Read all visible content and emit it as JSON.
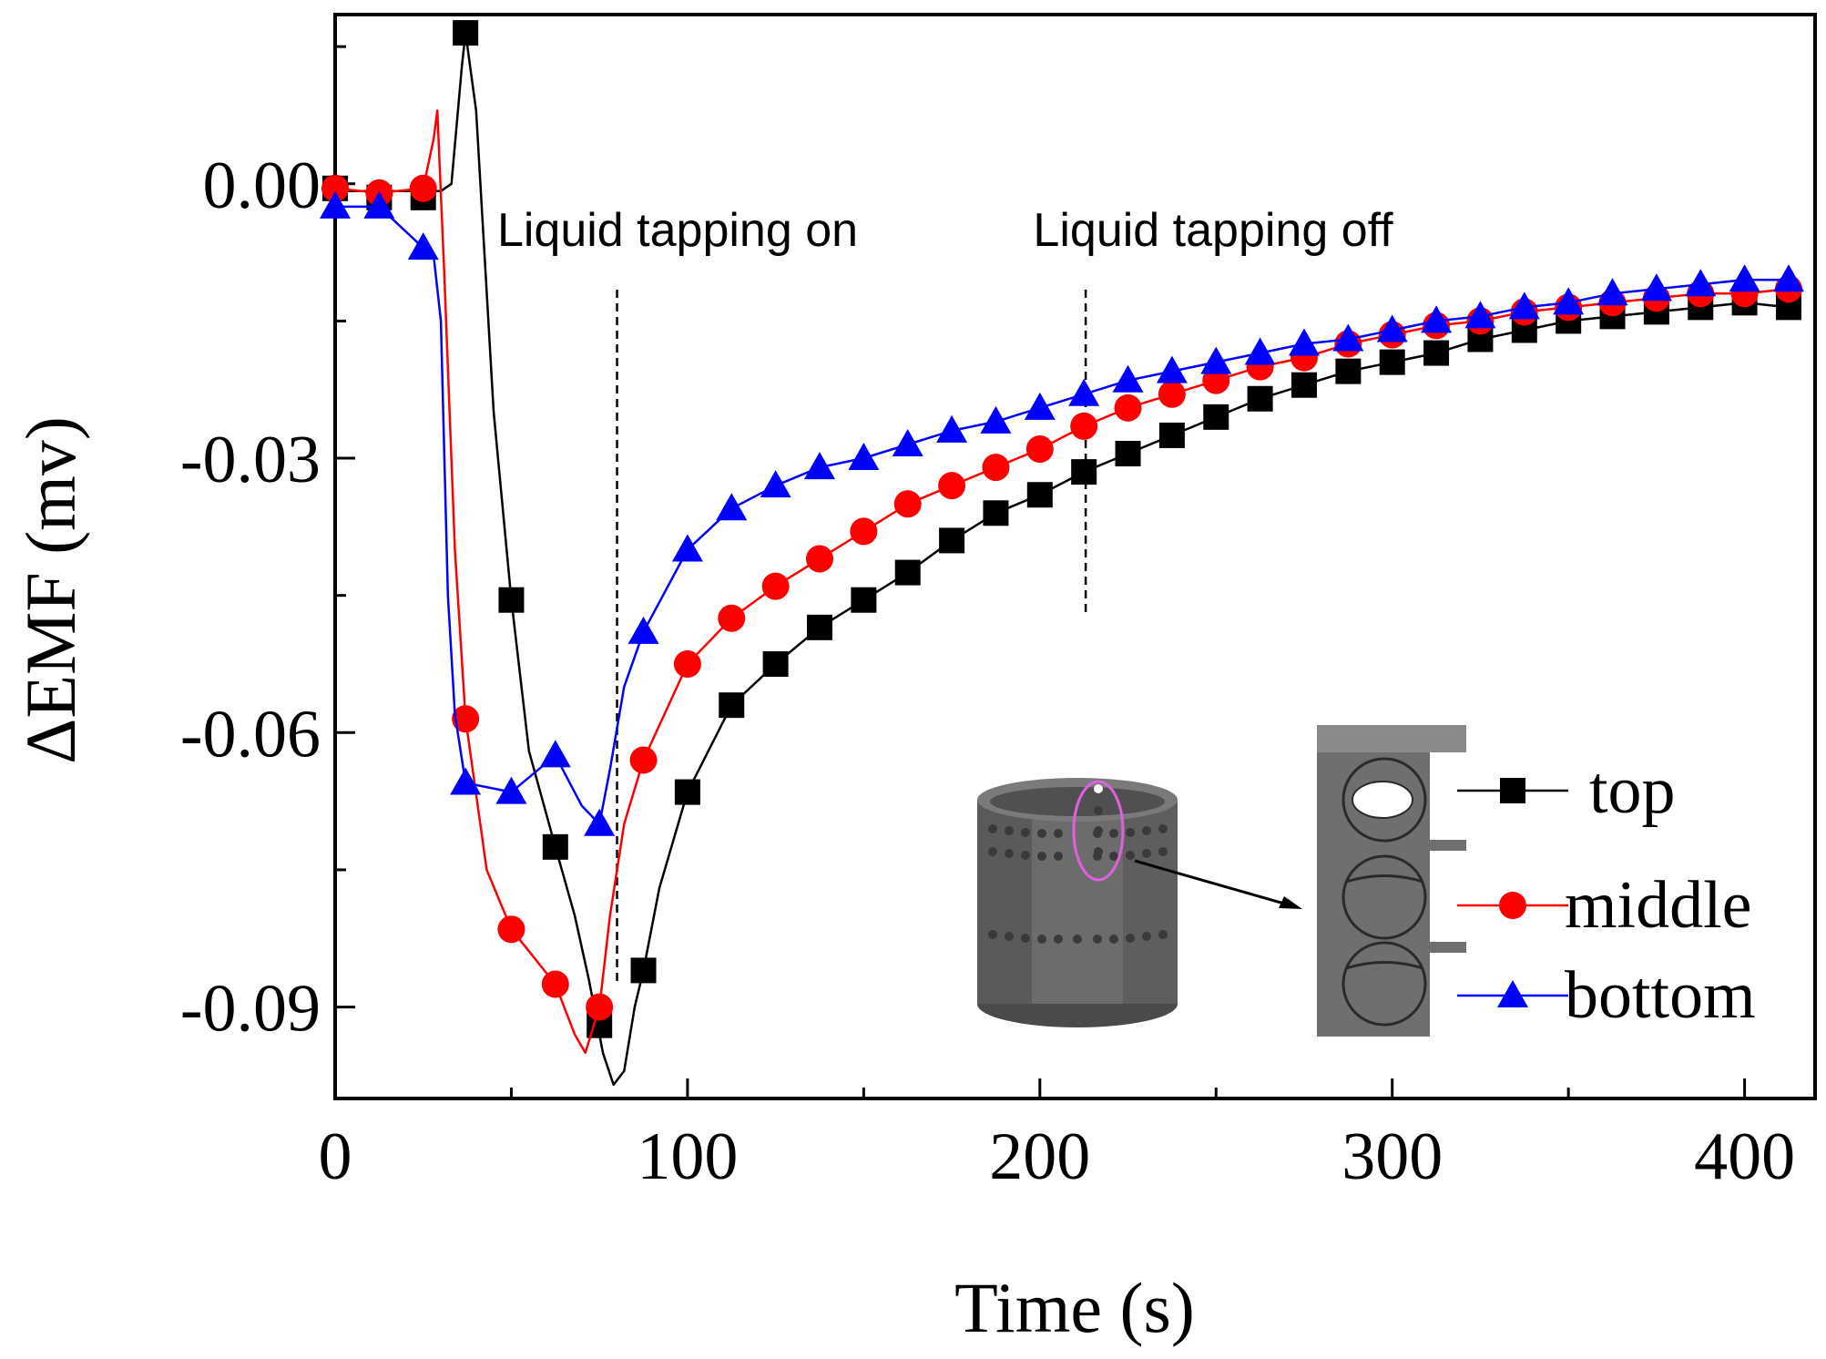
{
  "chart_data": {
    "type": "line",
    "title": "",
    "xlabel": "Time (s)",
    "ylabel": "ΔEMF (mv)",
    "xlim": [
      0,
      420
    ],
    "ylim": [
      -0.1,
      0.0185
    ],
    "xticks": [
      0,
      100,
      200,
      300,
      400
    ],
    "yticks": [
      0.0,
      -0.03,
      -0.06,
      -0.09
    ],
    "xtick_labels": [
      "0",
      "100",
      "200",
      "300",
      "400"
    ],
    "ytick_labels": [
      "0.00",
      "-0.03",
      "-0.06",
      "-0.09"
    ],
    "grid": false,
    "legend_position": "bottom-right",
    "annotations": [
      {
        "id": "on",
        "text": "Liquid tapping on",
        "x": 80
      },
      {
        "id": "off",
        "text": "Liquid tapping off",
        "x": 213
      }
    ],
    "series": [
      {
        "name": "top",
        "color": "#000000",
        "marker": "square",
        "points": [
          [
            0,
            -0.0005
          ],
          [
            12.5,
            -0.0015
          ],
          [
            25,
            -0.0015
          ],
          [
            37,
            0.0165
          ],
          [
            50,
            -0.0455
          ],
          [
            62.5,
            -0.0725
          ],
          [
            75,
            -0.092
          ],
          [
            87.5,
            -0.086
          ],
          [
            100,
            -0.0665
          ],
          [
            112.5,
            -0.057
          ],
          [
            125,
            -0.0525
          ],
          [
            137.5,
            -0.0485
          ],
          [
            150,
            -0.0455
          ],
          [
            162.5,
            -0.0425
          ],
          [
            175,
            -0.039
          ],
          [
            187.5,
            -0.036
          ],
          [
            200,
            -0.034
          ],
          [
            212.5,
            -0.0315
          ],
          [
            225,
            -0.0295
          ],
          [
            237.5,
            -0.0275
          ],
          [
            250,
            -0.0255
          ],
          [
            262.5,
            -0.0235
          ],
          [
            275,
            -0.022
          ],
          [
            287.5,
            -0.0205
          ],
          [
            300,
            -0.0195
          ],
          [
            312.5,
            -0.0185
          ],
          [
            325,
            -0.017
          ],
          [
            337.5,
            -0.016
          ],
          [
            350,
            -0.015
          ],
          [
            362.5,
            -0.0145
          ],
          [
            375,
            -0.014
          ],
          [
            387.5,
            -0.0135
          ],
          [
            400,
            -0.013
          ],
          [
            412.5,
            -0.0135
          ]
        ],
        "curve": [
          [
            0,
            -0.0008
          ],
          [
            30,
            -0.0008
          ],
          [
            33,
            0.0
          ],
          [
            36,
            0.013
          ],
          [
            37,
            0.0165
          ],
          [
            40,
            0.008
          ],
          [
            45,
            -0.025
          ],
          [
            50,
            -0.0455
          ],
          [
            55,
            -0.062
          ],
          [
            62.5,
            -0.0725
          ],
          [
            68,
            -0.08
          ],
          [
            72,
            -0.087
          ],
          [
            76,
            -0.095
          ],
          [
            79,
            -0.0985
          ],
          [
            82,
            -0.097
          ],
          [
            85,
            -0.09
          ],
          [
            87.5,
            -0.086
          ],
          [
            92,
            -0.077
          ],
          [
            100,
            -0.0665
          ],
          [
            112.5,
            -0.057
          ],
          [
            125,
            -0.0525
          ],
          [
            137.5,
            -0.0485
          ],
          [
            150,
            -0.0455
          ],
          [
            162.5,
            -0.0425
          ],
          [
            175,
            -0.039
          ],
          [
            187.5,
            -0.036
          ],
          [
            200,
            -0.034
          ],
          [
            212.5,
            -0.0315
          ],
          [
            225,
            -0.0295
          ],
          [
            237.5,
            -0.0275
          ],
          [
            250,
            -0.0255
          ],
          [
            262.5,
            -0.0235
          ],
          [
            275,
            -0.022
          ],
          [
            287.5,
            -0.0205
          ],
          [
            300,
            -0.0195
          ],
          [
            312.5,
            -0.0185
          ],
          [
            325,
            -0.017
          ],
          [
            337.5,
            -0.016
          ],
          [
            350,
            -0.015
          ],
          [
            362.5,
            -0.0145
          ],
          [
            375,
            -0.014
          ],
          [
            387.5,
            -0.0135
          ],
          [
            400,
            -0.013
          ],
          [
            412.5,
            -0.0135
          ]
        ]
      },
      {
        "name": "middle",
        "color": "#ff0000",
        "marker": "circle",
        "points": [
          [
            0,
            -0.0005
          ],
          [
            12.5,
            -0.001
          ],
          [
            25,
            -0.0005
          ],
          [
            37,
            -0.0585
          ],
          [
            50,
            -0.0815
          ],
          [
            62.5,
            -0.0875
          ],
          [
            75,
            -0.09
          ],
          [
            87.5,
            -0.063
          ],
          [
            100,
            -0.0525
          ],
          [
            112.5,
            -0.0475
          ],
          [
            125,
            -0.044
          ],
          [
            137.5,
            -0.041
          ],
          [
            150,
            -0.038
          ],
          [
            162.5,
            -0.035
          ],
          [
            175,
            -0.033
          ],
          [
            187.5,
            -0.031
          ],
          [
            200,
            -0.029
          ],
          [
            212.5,
            -0.0265
          ],
          [
            225,
            -0.0245
          ],
          [
            237.5,
            -0.023
          ],
          [
            250,
            -0.0215
          ],
          [
            262.5,
            -0.02
          ],
          [
            275,
            -0.019
          ],
          [
            287.5,
            -0.0175
          ],
          [
            300,
            -0.0165
          ],
          [
            312.5,
            -0.0155
          ],
          [
            325,
            -0.015
          ],
          [
            337.5,
            -0.014
          ],
          [
            350,
            -0.0135
          ],
          [
            362.5,
            -0.013
          ],
          [
            375,
            -0.0125
          ],
          [
            387.5,
            -0.012
          ],
          [
            400,
            -0.012
          ],
          [
            412.5,
            -0.0115
          ]
        ],
        "curve": [
          [
            0,
            -0.0005
          ],
          [
            12.5,
            -0.001
          ],
          [
            25,
            -0.0005
          ],
          [
            28,
            0.005
          ],
          [
            29,
            0.008
          ],
          [
            31,
            -0.01
          ],
          [
            34,
            -0.04
          ],
          [
            37,
            -0.0585
          ],
          [
            43,
            -0.075
          ],
          [
            50,
            -0.0815
          ],
          [
            62.5,
            -0.0875
          ],
          [
            68,
            -0.093
          ],
          [
            71,
            -0.095
          ],
          [
            75,
            -0.09
          ],
          [
            78,
            -0.08
          ],
          [
            82,
            -0.07
          ],
          [
            87.5,
            -0.063
          ],
          [
            100,
            -0.0525
          ],
          [
            112.5,
            -0.0475
          ],
          [
            125,
            -0.044
          ],
          [
            137.5,
            -0.041
          ],
          [
            150,
            -0.038
          ],
          [
            162.5,
            -0.035
          ],
          [
            175,
            -0.033
          ],
          [
            187.5,
            -0.031
          ],
          [
            200,
            -0.029
          ],
          [
            212.5,
            -0.0265
          ],
          [
            225,
            -0.0245
          ],
          [
            237.5,
            -0.023
          ],
          [
            250,
            -0.0215
          ],
          [
            262.5,
            -0.02
          ],
          [
            275,
            -0.019
          ],
          [
            287.5,
            -0.0175
          ],
          [
            300,
            -0.0165
          ],
          [
            312.5,
            -0.0155
          ],
          [
            325,
            -0.015
          ],
          [
            337.5,
            -0.014
          ],
          [
            350,
            -0.0135
          ],
          [
            362.5,
            -0.013
          ],
          [
            375,
            -0.0125
          ],
          [
            387.5,
            -0.012
          ],
          [
            400,
            -0.012
          ],
          [
            412.5,
            -0.0115
          ]
        ]
      },
      {
        "name": "bottom",
        "color": "#0000ff",
        "marker": "triangle",
        "points": [
          [
            0,
            -0.0025
          ],
          [
            12.5,
            -0.0025
          ],
          [
            25,
            -0.007
          ],
          [
            37,
            -0.0655
          ],
          [
            50,
            -0.0665
          ],
          [
            62.5,
            -0.0625
          ],
          [
            75,
            -0.07
          ],
          [
            87.5,
            -0.049
          ],
          [
            100,
            -0.04
          ],
          [
            112.5,
            -0.0355
          ],
          [
            125,
            -0.033
          ],
          [
            137.5,
            -0.031
          ],
          [
            150,
            -0.03
          ],
          [
            162.5,
            -0.0285
          ],
          [
            175,
            -0.027
          ],
          [
            187.5,
            -0.026
          ],
          [
            200,
            -0.0245
          ],
          [
            212.5,
            -0.023
          ],
          [
            225,
            -0.0215
          ],
          [
            237.5,
            -0.0205
          ],
          [
            250,
            -0.0195
          ],
          [
            262.5,
            -0.0185
          ],
          [
            275,
            -0.0175
          ],
          [
            287.5,
            -0.017
          ],
          [
            300,
            -0.016
          ],
          [
            312.5,
            -0.015
          ],
          [
            325,
            -0.0145
          ],
          [
            337.5,
            -0.0135
          ],
          [
            350,
            -0.013
          ],
          [
            362.5,
            -0.012
          ],
          [
            375,
            -0.0115
          ],
          [
            387.5,
            -0.011
          ],
          [
            400,
            -0.0105
          ],
          [
            412.5,
            -0.0105
          ]
        ],
        "curve": [
          [
            0,
            -0.0025
          ],
          [
            12.5,
            -0.0025
          ],
          [
            25,
            -0.007
          ],
          [
            28,
            -0.008
          ],
          [
            30,
            -0.015
          ],
          [
            32,
            -0.045
          ],
          [
            34,
            -0.058
          ],
          [
            37,
            -0.0655
          ],
          [
            50,
            -0.0665
          ],
          [
            62.5,
            -0.0625
          ],
          [
            70,
            -0.068
          ],
          [
            75,
            -0.07
          ],
          [
            78,
            -0.064
          ],
          [
            82,
            -0.055
          ],
          [
            87.5,
            -0.049
          ],
          [
            100,
            -0.04
          ],
          [
            112.5,
            -0.0355
          ],
          [
            125,
            -0.033
          ],
          [
            137.5,
            -0.031
          ],
          [
            150,
            -0.03
          ],
          [
            162.5,
            -0.0285
          ],
          [
            175,
            -0.027
          ],
          [
            187.5,
            -0.026
          ],
          [
            200,
            -0.0245
          ],
          [
            212.5,
            -0.023
          ],
          [
            225,
            -0.0215
          ],
          [
            237.5,
            -0.0205
          ],
          [
            250,
            -0.0195
          ],
          [
            262.5,
            -0.0185
          ],
          [
            275,
            -0.0175
          ],
          [
            287.5,
            -0.017
          ],
          [
            300,
            -0.016
          ],
          [
            312.5,
            -0.015
          ],
          [
            325,
            -0.0145
          ],
          [
            337.5,
            -0.0135
          ],
          [
            350,
            -0.013
          ],
          [
            362.5,
            -0.012
          ],
          [
            375,
            -0.0115
          ],
          [
            387.5,
            -0.011
          ],
          [
            400,
            -0.0105
          ],
          [
            412.5,
            -0.0105
          ]
        ]
      }
    ]
  },
  "inset": {
    "description_icon": "perforated-cylinder-icon",
    "detail_icon": "hole-detail-icon"
  }
}
